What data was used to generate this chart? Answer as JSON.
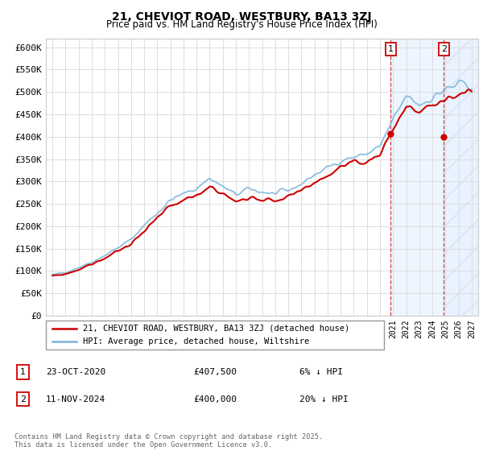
{
  "title": "21, CHEVIOT ROAD, WESTBURY, BA13 3ZJ",
  "subtitle": "Price paid vs. HM Land Registry's House Price Index (HPI)",
  "ylim": [
    0,
    620000
  ],
  "yticks": [
    0,
    50000,
    100000,
    150000,
    200000,
    250000,
    300000,
    350000,
    400000,
    450000,
    500000,
    550000,
    600000
  ],
  "ytick_labels": [
    "£0",
    "£50K",
    "£100K",
    "£150K",
    "£200K",
    "£250K",
    "£300K",
    "£350K",
    "£400K",
    "£450K",
    "£500K",
    "£550K",
    "£600K"
  ],
  "hpi_color": "#7ab4d8",
  "price_color": "#cc0000",
  "sale1_x": 2020.82,
  "sale1_y": 407500,
  "sale1_label": "1",
  "sale2_x": 2024.87,
  "sale2_y": 400000,
  "sale2_label": "2",
  "legend_line1": "21, CHEVIOT ROAD, WESTBURY, BA13 3ZJ (detached house)",
  "legend_line2": "HPI: Average price, detached house, Wiltshire",
  "table_row1_num": "1",
  "table_row1_date": "23-OCT-2020",
  "table_row1_price": "£407,500",
  "table_row1_hpi": "6% ↓ HPI",
  "table_row2_num": "2",
  "table_row2_date": "11-NOV-2024",
  "table_row2_price": "£400,000",
  "table_row2_hpi": "20% ↓ HPI",
  "footer": "Contains HM Land Registry data © Crown copyright and database right 2025.\nThis data is licensed under the Open Government Licence v3.0.",
  "background_color": "#ffffff",
  "grid_color": "#dddddd",
  "shade_color": "#ddeeff",
  "xmin": 1994.5,
  "xmax": 2027.5
}
